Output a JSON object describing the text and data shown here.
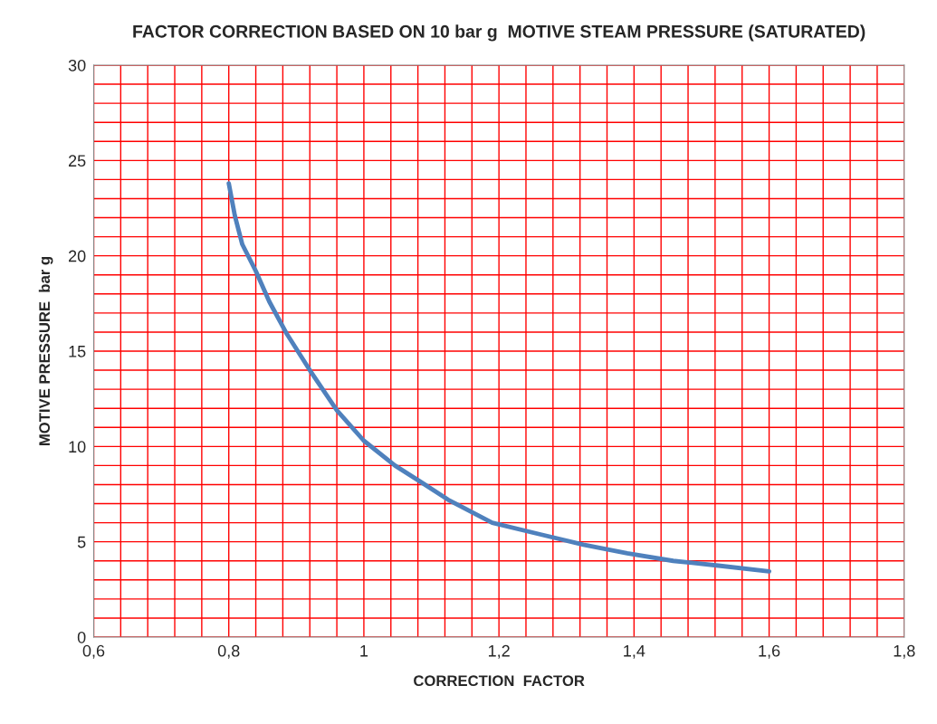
{
  "chart_data": {
    "type": "line",
    "title": "FACTOR CORRECTION BASED ON 10 bar g  MOTIVE STEAM PRESSURE (SATURATED)",
    "xlabel": "CORRECTION  FACTOR",
    "ylabel": "MOTIVE PRESSURE  bar g",
    "series": [
      {
        "color": "#4f81bd",
        "x": [
          0.8,
          0.809,
          0.82,
          0.84,
          0.86,
          0.886,
          0.92,
          0.96,
          1.0,
          1.046,
          1.086,
          1.125,
          1.19,
          1.26,
          1.325,
          1.39,
          1.458,
          1.525,
          1.6
        ],
        "values": [
          23.8,
          22.1,
          20.6,
          19.2,
          17.6,
          15.9,
          14.0,
          11.9,
          10.3,
          9.0,
          8.1,
          7.2,
          6.0,
          5.4,
          4.85,
          4.4,
          4.0,
          3.75,
          3.45
        ]
      }
    ],
    "xlim": [
      0.6,
      1.8
    ],
    "ylim": [
      0,
      30
    ],
    "xticks": [
      {
        "value": 0.6,
        "label": "0,6"
      },
      {
        "value": 0.64,
        "label": null
      },
      {
        "value": 0.68,
        "label": null
      },
      {
        "value": 0.72,
        "label": null
      },
      {
        "value": 0.76,
        "label": null
      },
      {
        "value": 0.8,
        "label": "0,8"
      },
      {
        "value": 0.84,
        "label": null
      },
      {
        "value": 0.88,
        "label": null
      },
      {
        "value": 0.92,
        "label": null
      },
      {
        "value": 0.96,
        "label": null
      },
      {
        "value": 1,
        "label": "1"
      },
      {
        "value": 1.04,
        "label": null
      },
      {
        "value": 1.08,
        "label": null
      },
      {
        "value": 1.12,
        "label": null
      },
      {
        "value": 1.16,
        "label": null
      },
      {
        "value": 1.2,
        "label": "1,2"
      },
      {
        "value": 1.24,
        "label": null
      },
      {
        "value": 1.28,
        "label": null
      },
      {
        "value": 1.32,
        "label": null
      },
      {
        "value": 1.36,
        "label": null
      },
      {
        "value": 1.4,
        "label": "1,4"
      },
      {
        "value": 1.44,
        "label": null
      },
      {
        "value": 1.48,
        "label": null
      },
      {
        "value": 1.52,
        "label": null
      },
      {
        "value": 1.56,
        "label": null
      },
      {
        "value": 1.6,
        "label": "1,6"
      },
      {
        "value": 1.64,
        "label": null
      },
      {
        "value": 1.68,
        "label": null
      },
      {
        "value": 1.72,
        "label": null
      },
      {
        "value": 1.76,
        "label": null
      },
      {
        "value": 1.8,
        "label": "1,8"
      }
    ],
    "yticks": [
      0,
      {
        "value": 1,
        "label": null
      },
      {
        "value": 2,
        "label": null
      },
      {
        "value": 3,
        "label": null
      },
      {
        "value": 4,
        "label": null
      },
      5,
      {
        "value": 6,
        "label": null
      },
      {
        "value": 7,
        "label": null
      },
      {
        "value": 8,
        "label": null
      },
      {
        "value": 9,
        "label": null
      },
      10,
      {
        "value": 11,
        "label": null
      },
      {
        "value": 12,
        "label": null
      },
      {
        "value": 13,
        "label": null
      },
      {
        "value": 14,
        "label": null
      },
      15,
      {
        "value": 16,
        "label": null
      },
      {
        "value": 17,
        "label": null
      },
      {
        "value": 18,
        "label": null
      },
      {
        "value": 19,
        "label": null
      },
      20,
      {
        "value": 21,
        "label": null
      },
      {
        "value": 22,
        "label": null
      },
      {
        "value": 23,
        "label": null
      },
      {
        "value": 24,
        "label": null
      },
      25,
      {
        "value": 26,
        "label": null
      },
      {
        "value": 27,
        "label": null
      },
      {
        "value": 28,
        "label": null
      },
      {
        "value": 29,
        "label": null
      },
      30
    ],
    "grid": true,
    "line_style": "solid",
    "marker": "none"
  }
}
